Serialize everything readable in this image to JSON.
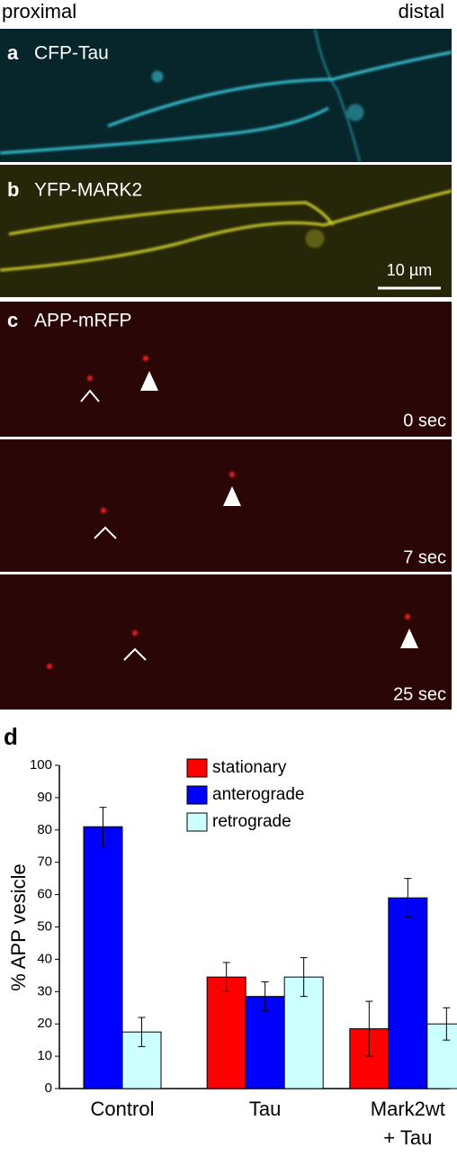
{
  "header": {
    "left": "proximal",
    "right": "distal"
  },
  "panels": [
    {
      "letter": "a",
      "label": "CFP-Tau"
    },
    {
      "letter": "b",
      "label": "YFP-MARK2",
      "scale_bar": "10 µm"
    },
    {
      "letter": "c",
      "label": "APP-mRFP",
      "frames": [
        "0 sec",
        "7 sec",
        "25 sec"
      ]
    }
  ],
  "chart_data": {
    "type": "bar",
    "panel_letter": "d",
    "ylabel": "% APP vesicle",
    "categories": [
      "Control",
      "Tau",
      "Mark2wt\n+ Tau"
    ],
    "series": [
      {
        "name": "stationary",
        "color": "#ff0000",
        "values": [
          null,
          34.5,
          18.5
        ],
        "errors": [
          null,
          4.5,
          8.5
        ]
      },
      {
        "name": "anterograde",
        "color": "#0000ff",
        "values": [
          81,
          28.5,
          59
        ],
        "errors": [
          6,
          4.5,
          6
        ]
      },
      {
        "name": "retrograde",
        "color": "#ccffff",
        "values": [
          17.5,
          34.5,
          20
        ],
        "errors": [
          4.5,
          6,
          5
        ]
      }
    ],
    "ylim": [
      0,
      100
    ],
    "yticks": [
      0,
      10,
      20,
      30,
      40,
      50,
      60,
      70,
      80,
      90,
      100
    ]
  }
}
